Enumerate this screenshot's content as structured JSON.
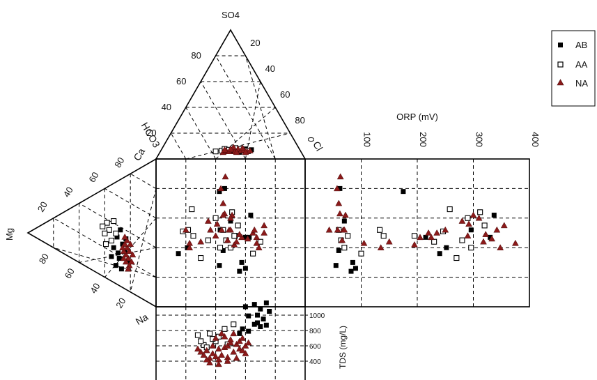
{
  "chart_data": {
    "type": "scatter",
    "title": "",
    "legend": {
      "placement": "top-right",
      "entries": [
        {
          "name": "AB",
          "marker": "filled-square",
          "color": "#000000"
        },
        {
          "name": "AA",
          "marker": "open-square",
          "color": "#000000"
        },
        {
          "name": "NA",
          "marker": "filled-triangle",
          "color": "#8b1a1a"
        }
      ]
    },
    "ternary_top": {
      "apex_label": "SO4",
      "left_label": "HCO3",
      "right_label": "Cl",
      "left_ticks": [
        "20",
        "40",
        "60",
        "80"
      ],
      "right_ticks": [
        "20",
        "40",
        "60",
        "80"
      ]
    },
    "ternary_left": {
      "apex_label": "Mg",
      "top_label": "Ca",
      "bottom_label": "Na",
      "top_ticks": [
        "20",
        "40",
        "60",
        "80"
      ],
      "bottom_ticks": [
        "80",
        "60",
        "40",
        "20"
      ]
    },
    "orp_axis": {
      "label": "ORP (mV)",
      "range": [
        0,
        400
      ],
      "ticks": [
        "0",
        "100",
        "200",
        "300",
        "400"
      ]
    },
    "tds_axis": {
      "label": "TDS (mg/L)",
      "range": [
        200,
        1200
      ],
      "ticks": [
        "400",
        "600",
        "800",
        "1000"
      ]
    },
    "ternary_upper_samples": {
      "AB": [
        [
          50,
          10
        ],
        [
          52,
          9
        ],
        [
          55,
          11
        ],
        [
          58,
          10
        ],
        [
          60,
          12
        ],
        [
          62,
          9
        ],
        [
          64,
          11
        ],
        [
          56,
          8
        ],
        [
          48,
          9
        ]
      ],
      "AA": [
        [
          44,
          10
        ],
        [
          46,
          12
        ],
        [
          49,
          11
        ],
        [
          53,
          13
        ],
        [
          57,
          12
        ],
        [
          61,
          10
        ],
        [
          40,
          9
        ]
      ],
      "NA": [
        [
          45,
          8
        ],
        [
          47,
          10
        ],
        [
          49,
          9
        ],
        [
          51,
          11
        ],
        [
          53,
          9
        ],
        [
          55,
          12
        ],
        [
          57,
          10
        ],
        [
          59,
          11
        ],
        [
          61,
          9
        ],
        [
          63,
          10
        ],
        [
          52,
          14
        ],
        [
          50,
          12
        ],
        [
          54,
          8
        ],
        [
          58,
          13
        ],
        [
          46,
          11
        ],
        [
          60,
          8
        ]
      ]
    },
    "ternary_lower_samples": {
      "AB": [
        [
          30,
          48
        ],
        [
          35,
          44
        ],
        [
          28,
          52
        ],
        [
          33,
          56
        ],
        [
          38,
          50
        ],
        [
          25,
          58
        ],
        [
          32,
          40
        ],
        [
          36,
          60
        ],
        [
          27,
          45
        ],
        [
          40,
          55
        ],
        [
          31,
          62
        ],
        [
          34,
          53
        ]
      ],
      "AA": [
        [
          44,
          36
        ],
        [
          42,
          40
        ],
        [
          46,
          42
        ],
        [
          38,
          35
        ],
        [
          40,
          46
        ],
        [
          48,
          38
        ],
        [
          45,
          48
        ],
        [
          36,
          42
        ]
      ],
      "NA": [
        [
          24,
          52
        ],
        [
          26,
          50
        ],
        [
          28,
          48
        ],
        [
          25,
          56
        ],
        [
          27,
          54
        ],
        [
          29,
          52
        ],
        [
          22,
          58
        ],
        [
          24,
          60
        ],
        [
          26,
          46
        ],
        [
          28,
          44
        ],
        [
          30,
          50
        ],
        [
          23,
          48
        ],
        [
          21,
          54
        ],
        [
          27,
          58
        ],
        [
          25,
          62
        ],
        [
          29,
          56
        ]
      ]
    },
    "series": [
      {
        "name": "AB",
        "points": [
          [
            55,
            28
          ],
          [
            60,
            38
          ],
          [
            85,
            30
          ],
          [
            90,
            26
          ],
          [
            70,
            58
          ],
          [
            62,
            80
          ],
          [
            240,
            36
          ],
          [
            252,
            40
          ],
          [
            215,
            47
          ],
          [
            296,
            52
          ],
          [
            330,
            47
          ],
          [
            337,
            62
          ],
          [
            175,
            78
          ],
          [
            82,
            24
          ]
        ]
      },
      {
        "name": "AA",
        "points": [
          [
            60,
            52
          ],
          [
            64,
            45
          ],
          [
            70,
            40
          ],
          [
            76,
            48
          ],
          [
            100,
            36
          ],
          [
            133,
            52
          ],
          [
            140,
            48
          ],
          [
            195,
            48
          ],
          [
            230,
            44
          ],
          [
            246,
            51
          ],
          [
            258,
            66
          ],
          [
            296,
            40
          ],
          [
            290,
            60
          ],
          [
            312,
            64
          ],
          [
            320,
            55
          ],
          [
            280,
            45
          ],
          [
            270,
            33
          ]
        ]
      },
      {
        "name": "NA",
        "points": [
          [
            43,
            52
          ],
          [
            58,
            52
          ],
          [
            66,
            45
          ],
          [
            68,
            52
          ],
          [
            62,
            63
          ],
          [
            60,
            70
          ],
          [
            57,
            80
          ],
          [
            63,
            88
          ],
          [
            70,
            52
          ],
          [
            72,
            62
          ],
          [
            105,
            43
          ],
          [
            135,
            40
          ],
          [
            150,
            44
          ],
          [
            195,
            42
          ],
          [
            205,
            47
          ],
          [
            220,
            50
          ],
          [
            225,
            47
          ],
          [
            235,
            50
          ],
          [
            250,
            52
          ],
          [
            280,
            58
          ],
          [
            292,
            56
          ],
          [
            300,
            62
          ],
          [
            310,
            60
          ],
          [
            318,
            44
          ],
          [
            322,
            49
          ],
          [
            342,
            52
          ],
          [
            355,
            55
          ],
          [
            348,
            40
          ],
          [
            375,
            43
          ],
          [
            333,
            46
          ],
          [
            290,
            48
          ]
        ]
      }
    ],
    "tds_series": [
      {
        "name": "AB",
        "points": [
          [
            66,
            1140
          ],
          [
            74,
            1160
          ],
          [
            60,
            1110
          ],
          [
            70,
            1080
          ],
          [
            76,
            1050
          ],
          [
            68,
            1000
          ],
          [
            62,
            990
          ],
          [
            72,
            950
          ],
          [
            66,
            880
          ],
          [
            74,
            870
          ],
          [
            70,
            850
          ],
          [
            58,
            820
          ],
          [
            62,
            790
          ],
          [
            56,
            760
          ],
          [
            68,
            900
          ]
        ]
      },
      {
        "name": "AA",
        "points": [
          [
            28,
            740
          ],
          [
            36,
            760
          ],
          [
            32,
            610
          ],
          [
            34,
            580
          ],
          [
            40,
            660
          ],
          [
            42,
            720
          ],
          [
            46,
            820
          ],
          [
            52,
            880
          ],
          [
            48,
            620
          ],
          [
            38,
            690
          ],
          [
            30,
            660
          ]
        ]
      },
      {
        "name": "NA",
        "points": [
          [
            30,
            520
          ],
          [
            34,
            540
          ],
          [
            38,
            500
          ],
          [
            42,
            560
          ],
          [
            46,
            580
          ],
          [
            48,
            600
          ],
          [
            50,
            640
          ],
          [
            52,
            520
          ],
          [
            44,
            480
          ],
          [
            40,
            460
          ],
          [
            36,
            440
          ],
          [
            32,
            480
          ],
          [
            54,
            620
          ],
          [
            56,
            560
          ],
          [
            58,
            540
          ],
          [
            60,
            500
          ],
          [
            48,
            450
          ],
          [
            42,
            420
          ],
          [
            50,
            680
          ],
          [
            46,
            720
          ],
          [
            52,
            760
          ],
          [
            38,
            600
          ],
          [
            40,
            700
          ],
          [
            44,
            760
          ],
          [
            56,
            660
          ],
          [
            36,
            380
          ],
          [
            42,
            360
          ],
          [
            48,
            400
          ],
          [
            54,
            440
          ],
          [
            34,
            420
          ],
          [
            60,
            600
          ],
          [
            62,
            640
          ],
          [
            58,
            700
          ],
          [
            28,
            560
          ]
        ]
      }
    ]
  }
}
